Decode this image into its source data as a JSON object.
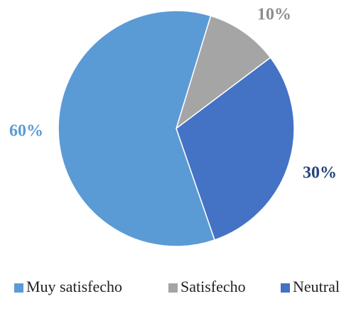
{
  "chart_data": {
    "type": "pie",
    "title": "",
    "legend_position": "bottom",
    "start_angle_deg": 17,
    "direction": "clockwise",
    "slices": [
      {
        "name": "Satisfecho",
        "value": 10,
        "label": "10%",
        "color": "#a5a5a5",
        "label_color": "#8c8c8c"
      },
      {
        "name": "Neutral",
        "value": 30,
        "label": "30%",
        "color": "#4472c4",
        "label_color": "#264478"
      },
      {
        "name": "Muy satisfecho",
        "value": 60,
        "label": "60%",
        "color": "#5b9bd5",
        "label_color": "#5b9bd5"
      }
    ],
    "legend_order": [
      "Muy satisfecho",
      "Satisfecho",
      "Neutral"
    ]
  }
}
